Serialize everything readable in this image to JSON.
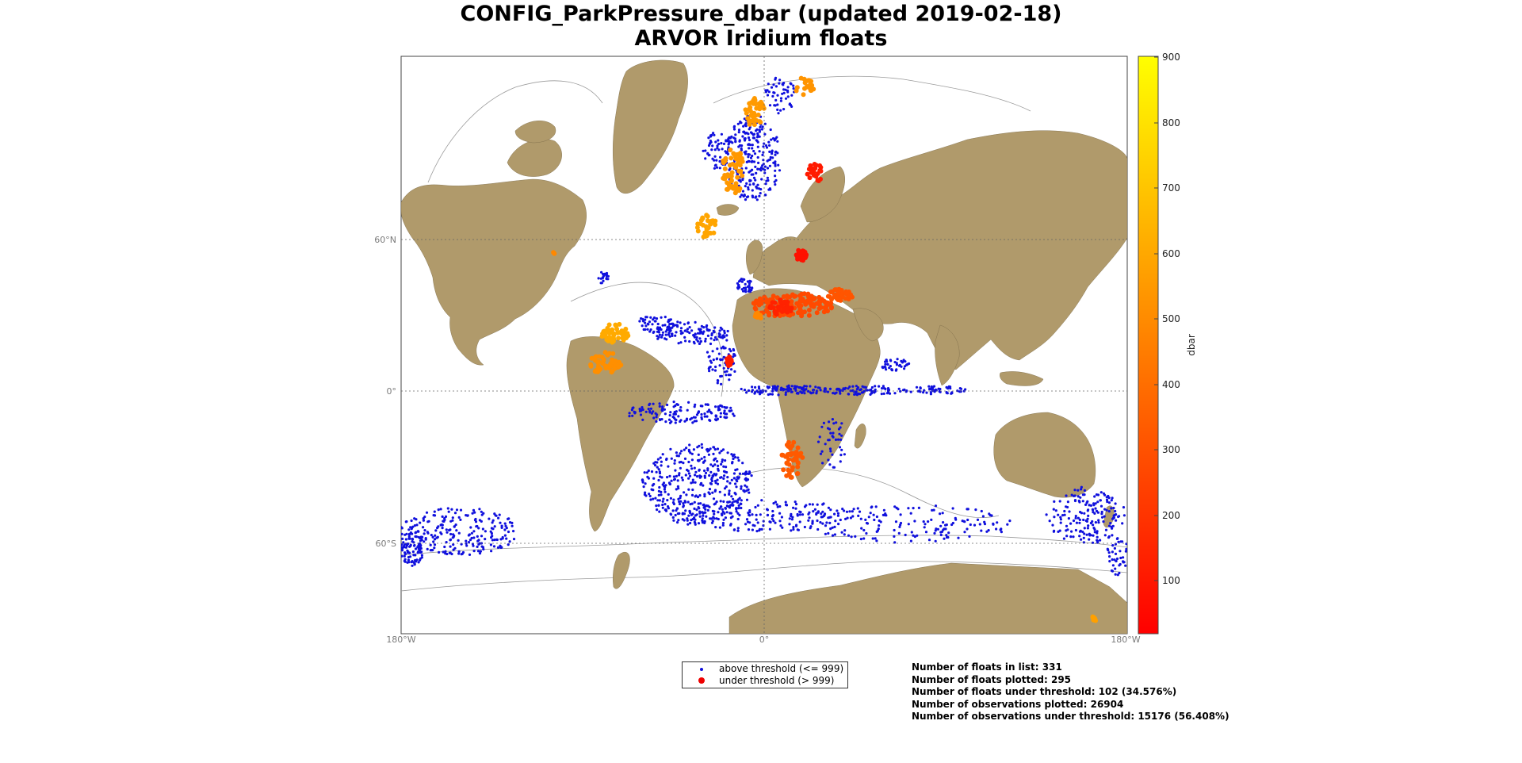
{
  "title_line1": "CONFIG_ParkPressure_dbar (updated 2019-02-18)",
  "title_line2": "ARVOR Iridium floats",
  "map": {
    "lat_labels": [
      "60°N",
      "0°",
      "60°S"
    ],
    "lon_labels": [
      "180°W",
      "0°",
      "180°W"
    ],
    "land_color": "#b09a6b",
    "ocean_color": "#ffffff",
    "above_color": "#1010dd"
  },
  "colorbar": {
    "label": "dbar",
    "ticks": [
      "900",
      "800",
      "700",
      "600",
      "500",
      "400",
      "300",
      "200",
      "100"
    ],
    "colormap": "autumn",
    "range": [
      20,
      900
    ]
  },
  "legend": {
    "above": "above threshold (<= 999)",
    "under": "under threshold (> 999)"
  },
  "stats": {
    "line1": "Number of floats in list: 331",
    "line2": "Number of floats plotted: 295",
    "line3": "Number of floats under threshold: 102 (34.576%)",
    "line4": "Number of observations plotted:  26904",
    "line5": "Number of observations under threshold: 15176 (56.408%)"
  }
}
